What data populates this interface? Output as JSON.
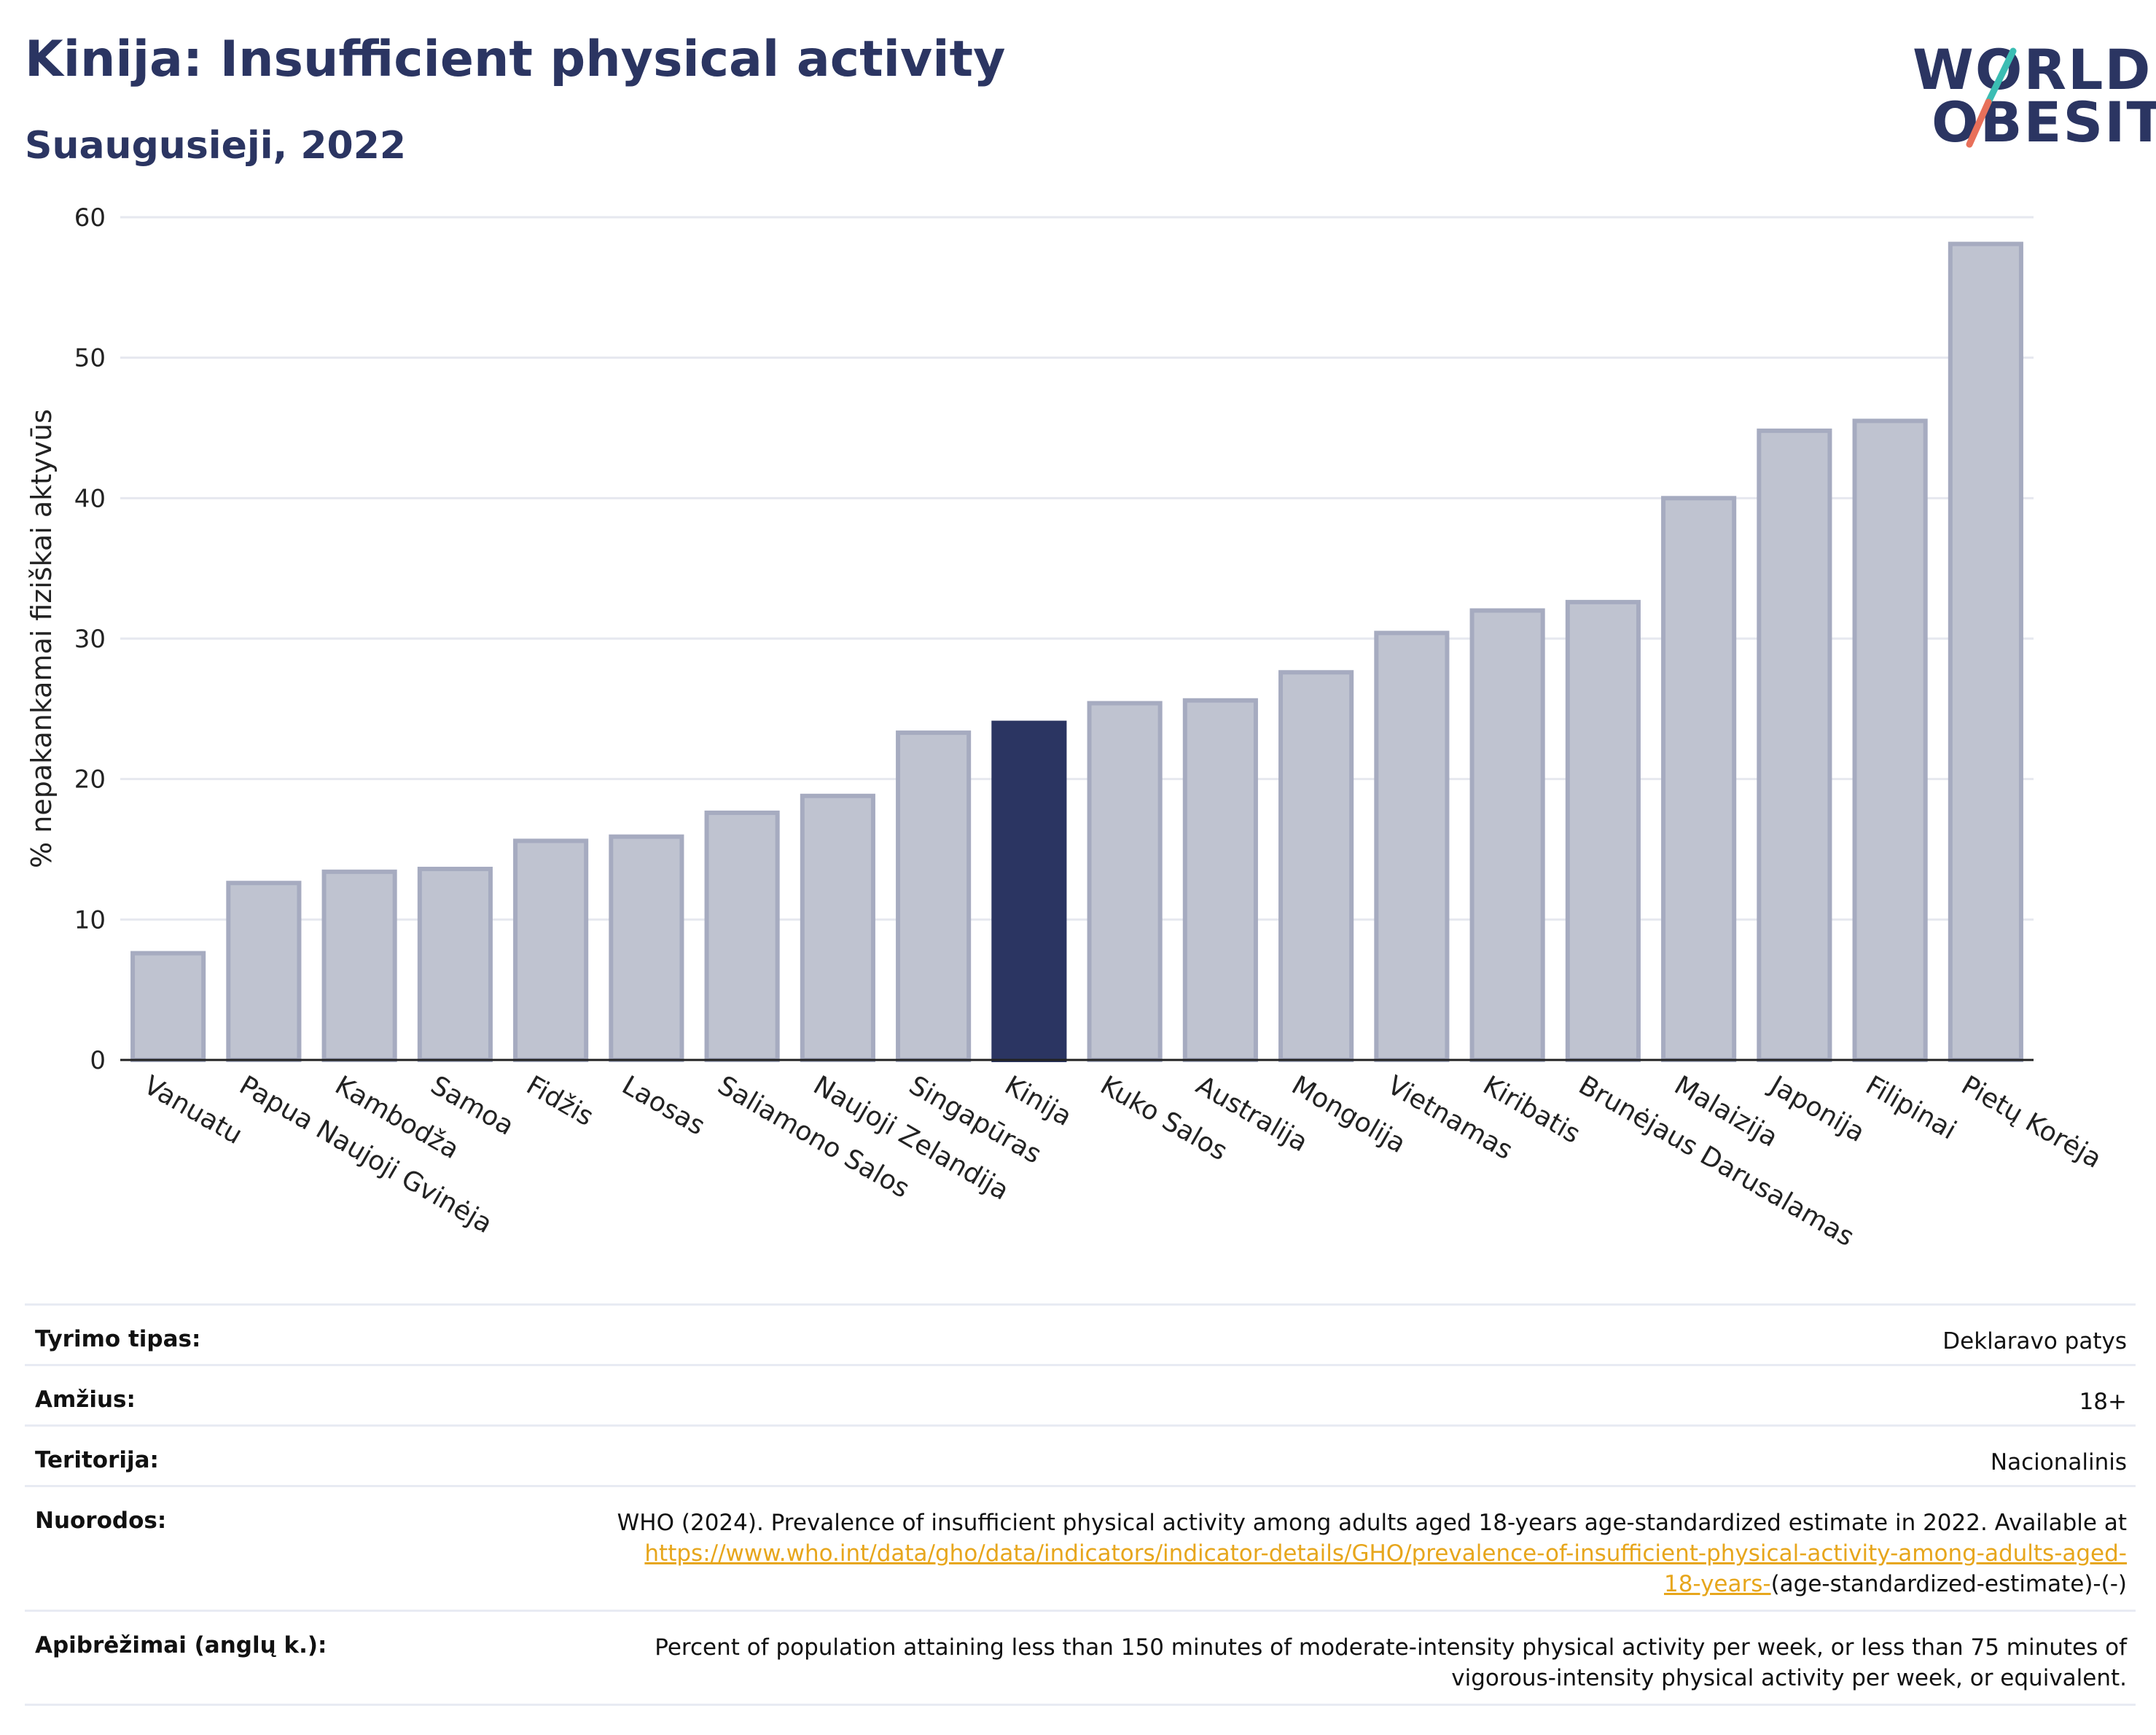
{
  "header": {
    "title": "Kinija: Insufficient physical activity",
    "subtitle": "Suaugusieji, 2022"
  },
  "logo": {
    "line1": "WORLD",
    "line2": "OBESITY",
    "colors": {
      "text": "#2b3562",
      "slash_top": "#3bbdb3",
      "slash_bottom": "#e8705a"
    }
  },
  "chart_data": {
    "type": "bar",
    "ylabel": "% nepakankamai fiziškai aktyvūs",
    "xlabel": "",
    "ylim": [
      0,
      60
    ],
    "yticks": [
      0,
      10,
      20,
      30,
      40,
      50,
      60
    ],
    "grid": true,
    "categories": [
      "Vanuatu",
      "Papua Naujoji Gvinėja",
      "Kambodža",
      "Samoa",
      "Fidžis",
      "Laosas",
      "Saliamono Salos",
      "Naujoji Zelandija",
      "Singapūras",
      "Kinija",
      "Kuko Salos",
      "Australija",
      "Mongolija",
      "Vietnamas",
      "Kiribatis",
      "Brunėjaus Darusalamas",
      "Malaizija",
      "Japonija",
      "Filipinai",
      "Pietų Korėja"
    ],
    "values": [
      7.6,
      12.6,
      13.4,
      13.6,
      15.6,
      15.9,
      17.6,
      18.8,
      23.3,
      24.0,
      25.4,
      25.6,
      27.6,
      30.4,
      32.0,
      32.6,
      40.0,
      44.8,
      45.5,
      58.1
    ],
    "highlight": "Kinija",
    "colors": {
      "bar": "#bfc3d0",
      "bar_stroke": "#a6abc0",
      "highlight": "#2b3562",
      "grid": "#e6e8ef",
      "axis": "#222222"
    }
  },
  "info": {
    "rows": [
      {
        "label": "Tyrimo tipas:",
        "value": "Deklaravo patys"
      },
      {
        "label": "Amžius:",
        "value": "18+"
      },
      {
        "label": "Teritorija:",
        "value": "Nacionalinis"
      }
    ],
    "references": {
      "label": "Nuorodos:",
      "text": "WHO (2024). Prevalence of insufficient physical activity among adults aged 18-years age-standardized estimate in 2022. Available at",
      "link_line1": "https://www.who.int/data/gho/data/indicators/indicator-details/GHO/prevalence-of-insufficient-physical-activity-among-adults-aged-",
      "link_line2": "18-years-",
      "tail": "(age-standardized-estimate)-(-)"
    },
    "definitions": {
      "label": "Apibrėžimai (anglų k.):",
      "line1": "Percent of population attaining less than 150 minutes of moderate-intensity physical activity per week, or less than 75 minutes of",
      "line2": "vigorous-intensity physical activity per week, or equivalent."
    }
  }
}
